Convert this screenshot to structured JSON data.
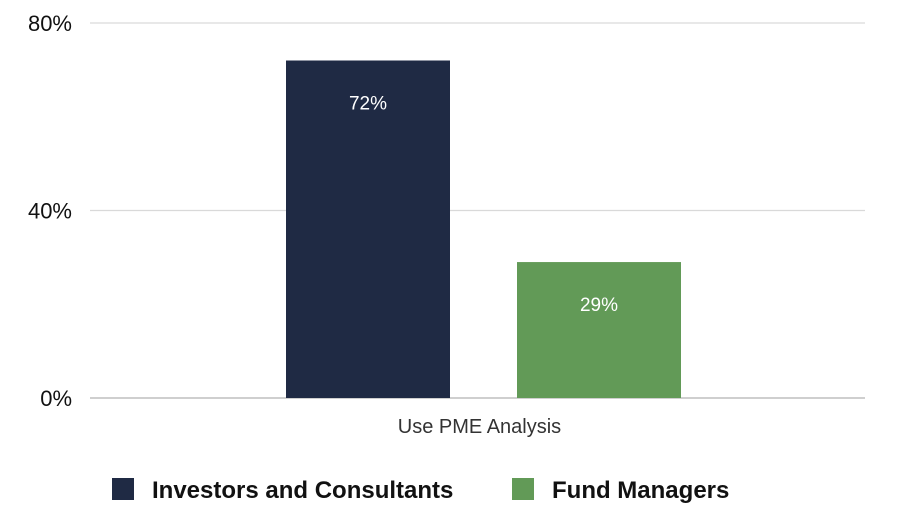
{
  "chart_data": {
    "type": "bar",
    "categories": [
      "Use PME Analysis"
    ],
    "series": [
      {
        "name": "Investors and Consultants",
        "values": [
          72
        ],
        "color": "#1f2a44",
        "label": "72%"
      },
      {
        "name": "Fund Managers",
        "values": [
          29
        ],
        "color": "#629a57",
        "label": "29%"
      }
    ],
    "yticks": [
      {
        "value": 0,
        "label": "0%"
      },
      {
        "value": 40,
        "label": "40%"
      },
      {
        "value": 80,
        "label": "80%"
      }
    ],
    "ylim": [
      0,
      80
    ],
    "grid": true,
    "legend_position": "bottom",
    "grid_color": "#d9d9d9",
    "axis_color": "#bfbfbf"
  }
}
